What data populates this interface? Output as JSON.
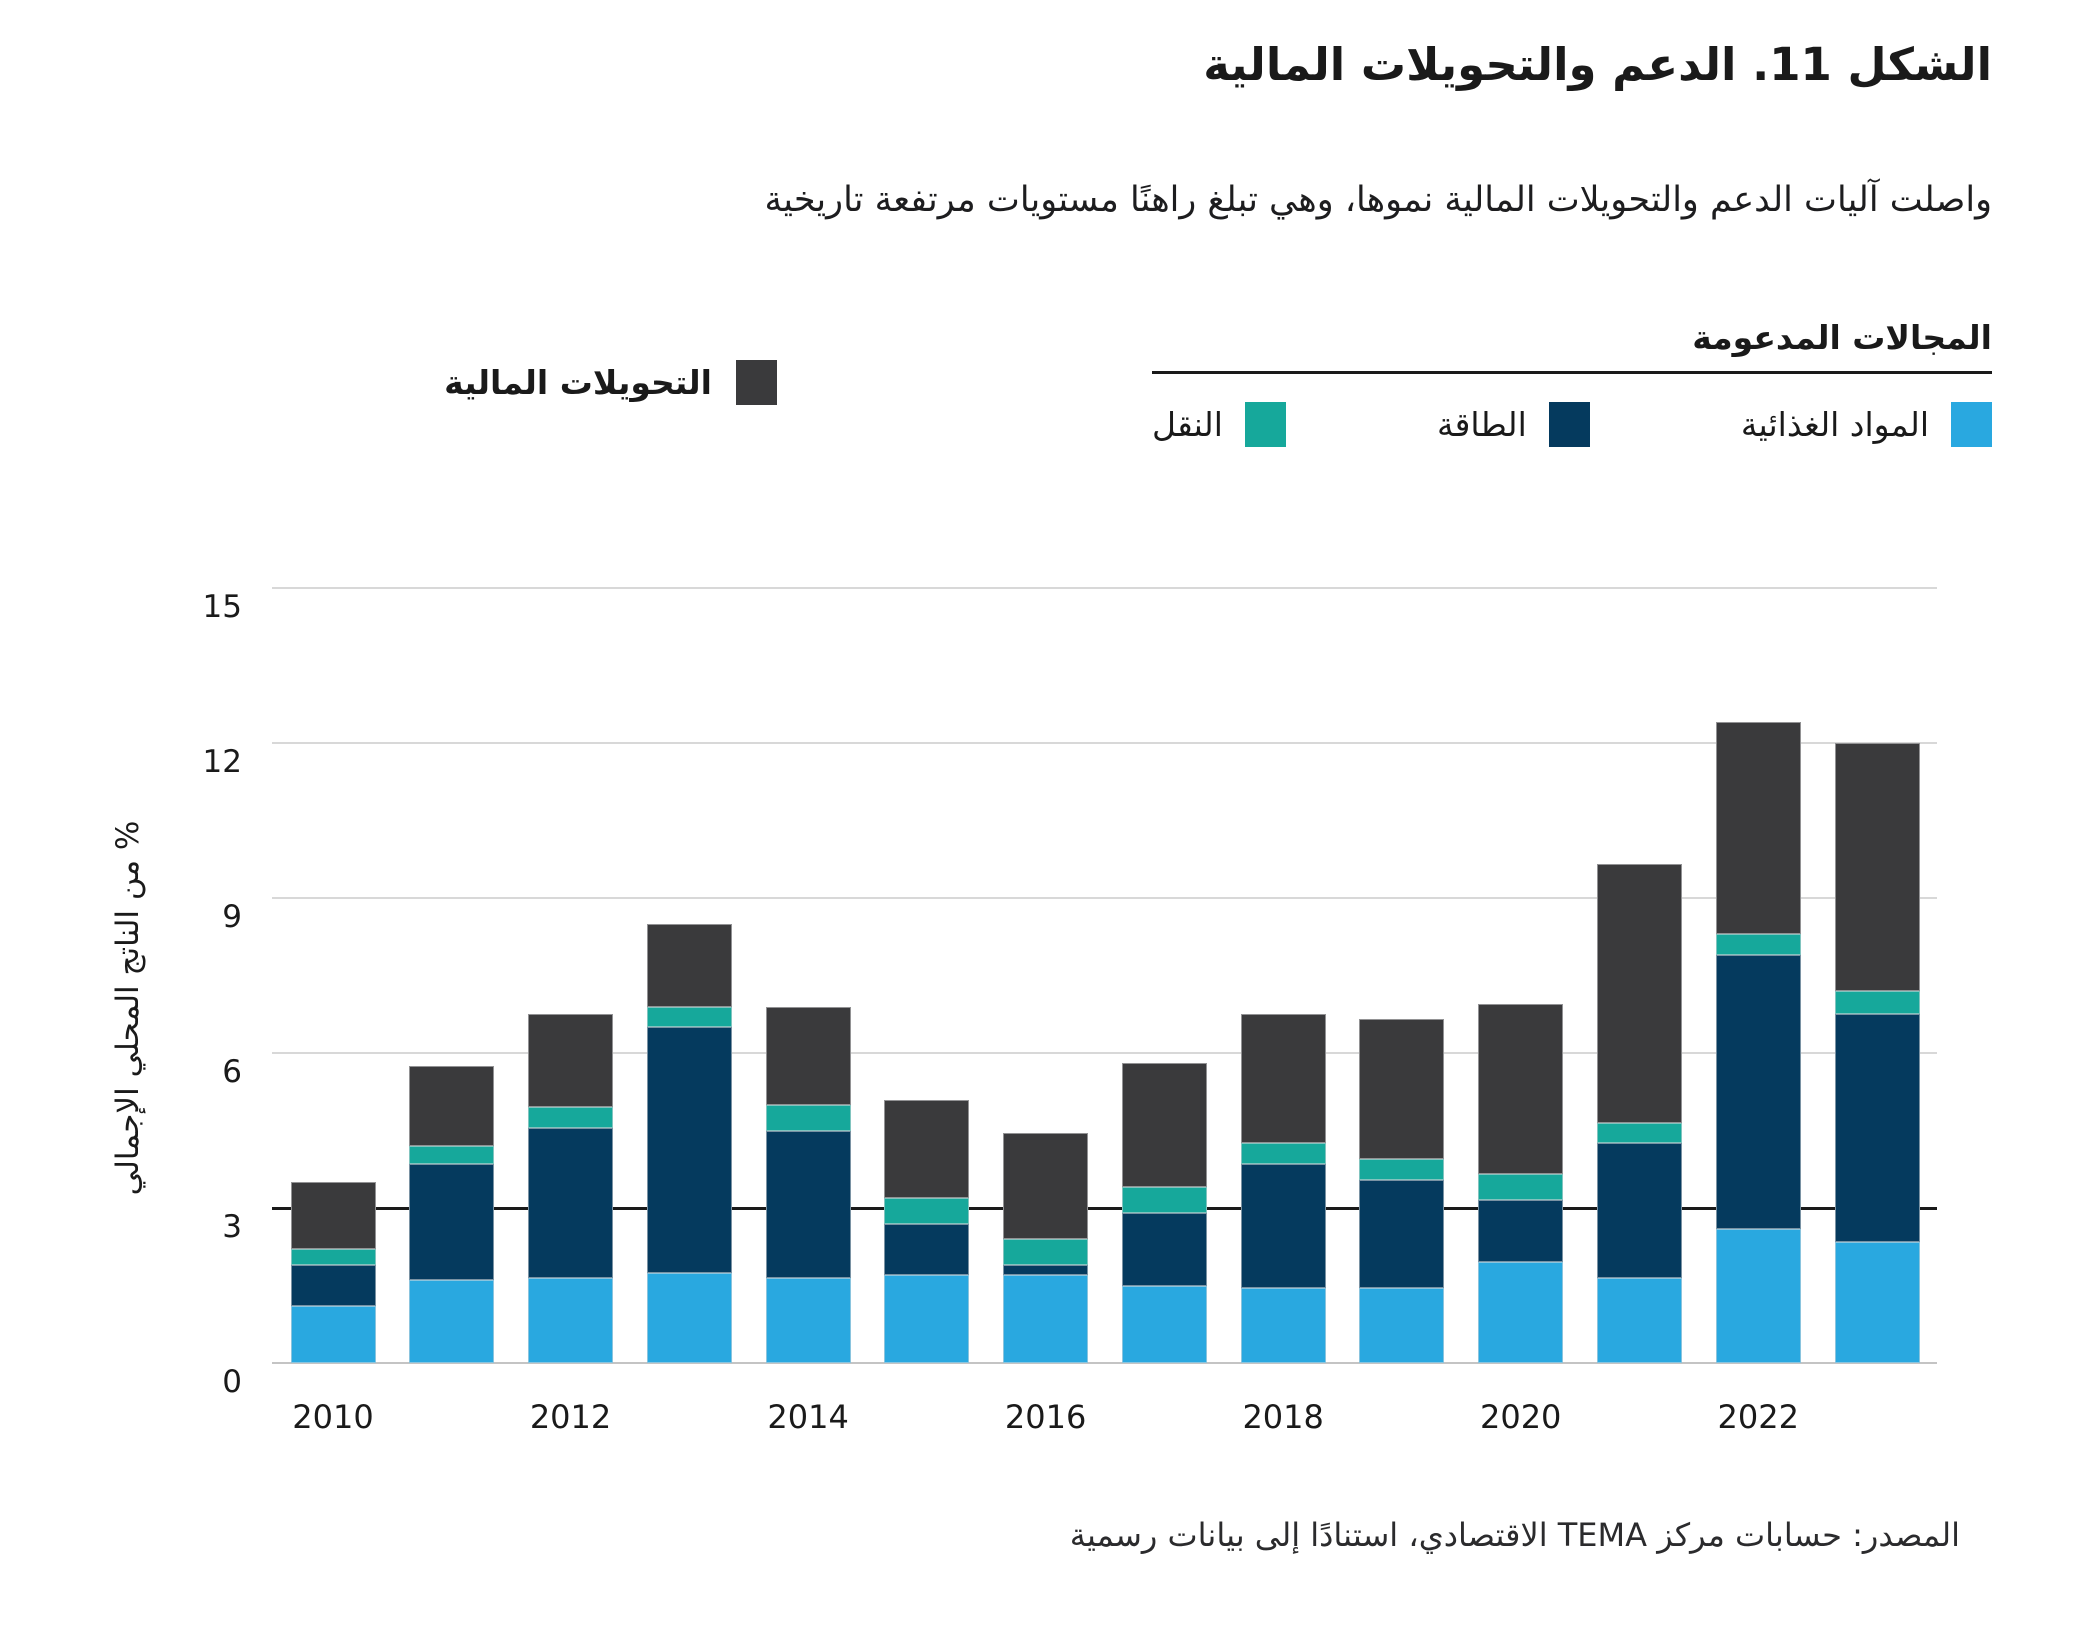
{
  "title": "الشكل 11. الدعم والتحويلات المالية",
  "subtitle": "واصلت آليات الدعم والتحويلات المالية نموها، وهي تبلغ راهنًا مستويات مرتفعة تاريخية",
  "legend": {
    "group_title": "المجالات المدعومة",
    "items": [
      {
        "key": "food",
        "label": "المواد الغذائية",
        "color": "#29A8E0"
      },
      {
        "key": "energy",
        "label": "الطاقة",
        "color": "#053A5E"
      },
      {
        "key": "transport",
        "label": "النقل",
        "color": "#16A89B"
      }
    ],
    "transfers": {
      "key": "transfers",
      "label": "التحويلات المالية",
      "color": "#3A3A3C"
    }
  },
  "chart_data": {
    "type": "bar",
    "stacked": true,
    "categories": [
      "2010",
      "2011",
      "2012",
      "2013",
      "2014",
      "2015",
      "2016",
      "2017",
      "2018",
      "2019",
      "2020",
      "2021",
      "2022",
      "2023"
    ],
    "series": [
      {
        "name": "المواد الغذائية",
        "color": "#29A8E0",
        "values": [
          1.1,
          1.6,
          1.65,
          1.75,
          1.65,
          1.7,
          1.7,
          1.5,
          1.45,
          1.45,
          1.95,
          1.65,
          2.6,
          2.35
        ]
      },
      {
        "name": "الطاقة",
        "color": "#053A5E",
        "values": [
          0.8,
          2.25,
          2.9,
          4.75,
          2.85,
          1.0,
          0.2,
          1.4,
          2.4,
          2.1,
          1.2,
          2.6,
          5.3,
          4.4
        ]
      },
      {
        "name": "النقل",
        "color": "#16A89B",
        "values": [
          0.3,
          0.35,
          0.4,
          0.4,
          0.5,
          0.5,
          0.5,
          0.5,
          0.4,
          0.4,
          0.5,
          0.4,
          0.4,
          0.45
        ]
      },
      {
        "name": "التحويلات المالية",
        "color": "#3A3A3C",
        "values": [
          1.3,
          1.55,
          1.8,
          1.6,
          1.9,
          1.9,
          2.05,
          2.4,
          2.5,
          2.7,
          3.3,
          5.0,
          4.1,
          4.8
        ]
      }
    ],
    "totals": [
      3.5,
      5.75,
      6.75,
      8.5,
      6.9,
      5.1,
      4.45,
      5.8,
      6.75,
      6.65,
      6.95,
      9.65,
      12.4,
      12.0
    ],
    "xlabel": "",
    "ylabel": "% من الناتج المحلي الإجمالي",
    "ylim": [
      0,
      15
    ],
    "yticks": [
      0,
      3,
      6,
      9,
      12,
      15
    ],
    "xtick_labels": [
      "2010",
      "2012",
      "2014",
      "2016",
      "2018",
      "2020",
      "2022"
    ],
    "reference_line_y": 3,
    "grid": true,
    "legend_position": "top"
  },
  "source": "المصدر: حسابات مركز TEMA الاقتصادي، استنادًا إلى بيانات رسمية"
}
